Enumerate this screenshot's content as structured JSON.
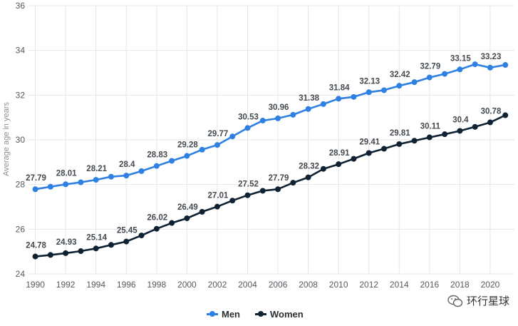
{
  "chart_data": {
    "type": "line",
    "title": "",
    "xlabel": "",
    "ylabel": "Average age in years",
    "ylim": [
      24,
      36
    ],
    "yticks": [
      24,
      26,
      28,
      30,
      32,
      34,
      36
    ],
    "xticks": [
      1990,
      1992,
      1994,
      1996,
      1998,
      2000,
      2002,
      2004,
      2006,
      2008,
      2010,
      2012,
      2014,
      2016,
      2018,
      2020
    ],
    "x": [
      1990,
      1991,
      1992,
      1993,
      1994,
      1995,
      1996,
      1997,
      1998,
      1999,
      2000,
      2001,
      2002,
      2003,
      2004,
      2005,
      2006,
      2007,
      2008,
      2009,
      2010,
      2011,
      2012,
      2013,
      2014,
      2015,
      2016,
      2017,
      2018,
      2019,
      2020,
      2021
    ],
    "grid": true,
    "legend_position": "bottom-center",
    "series": [
      {
        "name": "Men",
        "color": "#2f80e3",
        "values": [
          27.79,
          27.9,
          28.01,
          28.1,
          28.21,
          28.35,
          28.4,
          28.6,
          28.83,
          29.06,
          29.28,
          29.56,
          29.77,
          30.15,
          30.53,
          30.86,
          30.96,
          31.12,
          31.38,
          31.6,
          31.84,
          31.92,
          32.13,
          32.22,
          32.42,
          32.58,
          32.79,
          32.95,
          33.15,
          33.38,
          33.23,
          33.35
        ],
        "labels": [
          {
            "year": 1990,
            "text": "27.79"
          },
          {
            "year": 1992,
            "text": "28.01"
          },
          {
            "year": 1994,
            "text": "28.21"
          },
          {
            "year": 1996,
            "text": "28.4"
          },
          {
            "year": 1998,
            "text": "28.83"
          },
          {
            "year": 2000,
            "text": "29.28"
          },
          {
            "year": 2002,
            "text": "29.77"
          },
          {
            "year": 2004,
            "text": "30.53"
          },
          {
            "year": 2006,
            "text": "30.96"
          },
          {
            "year": 2008,
            "text": "31.38"
          },
          {
            "year": 2010,
            "text": "31.84"
          },
          {
            "year": 2012,
            "text": "32.13"
          },
          {
            "year": 2014,
            "text": "32.42"
          },
          {
            "year": 2016,
            "text": "32.79"
          },
          {
            "year": 2018,
            "text": "33.15"
          },
          {
            "year": 2020,
            "text": "33.23"
          }
        ]
      },
      {
        "name": "Women",
        "color": "#0f2233",
        "values": [
          24.78,
          24.85,
          24.93,
          25.02,
          25.14,
          25.3,
          25.45,
          25.72,
          26.02,
          26.28,
          26.49,
          26.78,
          27.01,
          27.28,
          27.52,
          27.72,
          27.79,
          28.08,
          28.32,
          28.7,
          28.91,
          29.15,
          29.41,
          29.6,
          29.81,
          29.96,
          30.11,
          30.25,
          30.4,
          30.58,
          30.78,
          31.1
        ],
        "labels": [
          {
            "year": 1990,
            "text": "24.78"
          },
          {
            "year": 1992,
            "text": "24.93"
          },
          {
            "year": 1994,
            "text": "25.14"
          },
          {
            "year": 1996,
            "text": "25.45"
          },
          {
            "year": 1998,
            "text": "26.02"
          },
          {
            "year": 2000,
            "text": "26.49"
          },
          {
            "year": 2002,
            "text": "27.01"
          },
          {
            "year": 2004,
            "text": "27.52"
          },
          {
            "year": 2006,
            "text": "27.79"
          },
          {
            "year": 2008,
            "text": "28.32"
          },
          {
            "year": 2010,
            "text": "28.91"
          },
          {
            "year": 2012,
            "text": "29.41"
          },
          {
            "year": 2014,
            "text": "29.81"
          },
          {
            "year": 2016,
            "text": "30.11"
          },
          {
            "year": 2018,
            "text": "30.4"
          },
          {
            "year": 2020,
            "text": "30.78"
          }
        ]
      }
    ]
  },
  "legend": {
    "men_label": "Men",
    "women_label": "Women"
  },
  "watermark": {
    "text": "环行星球"
  }
}
